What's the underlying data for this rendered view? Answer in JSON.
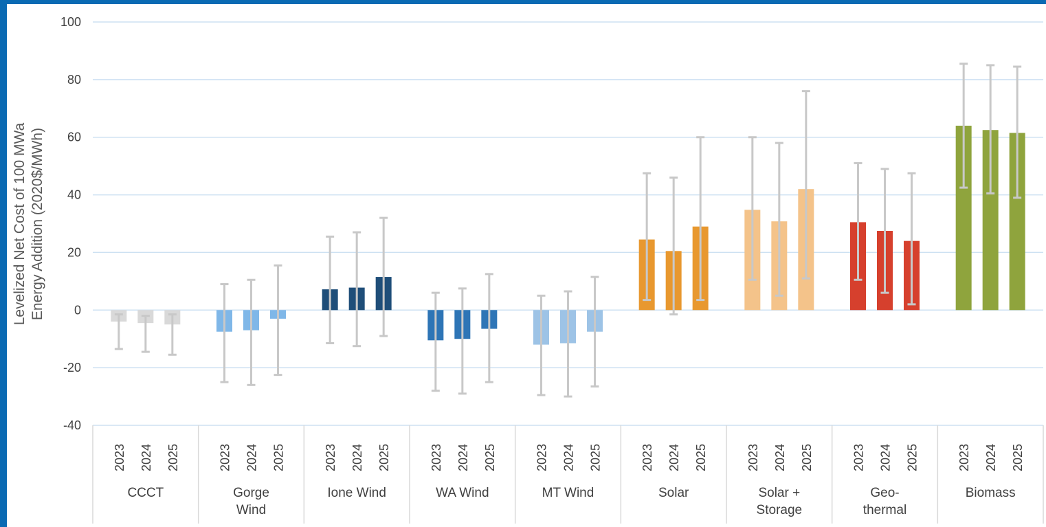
{
  "chart_data": {
    "type": "bar",
    "title": "",
    "ylabel_lines": [
      "Levelized Net Cost of 100 MWa",
      "Energy Addition (2020$/MWh)"
    ],
    "xlabel": "",
    "ylim": [
      -40,
      100
    ],
    "yticks": [
      -40,
      -20,
      0,
      20,
      40,
      60,
      80,
      100
    ],
    "grid": true,
    "years": [
      "2023",
      "2024",
      "2025"
    ],
    "groups": [
      {
        "label_lines": [
          "CCCT"
        ],
        "color": "#d9d9d9",
        "values": [
          -4,
          -4.5,
          -5
        ],
        "err_low": [
          -13.5,
          -14.5,
          -15.5
        ],
        "err_high": [
          -1.5,
          -2,
          -1.5
        ]
      },
      {
        "label_lines": [
          "Gorge",
          "Wind"
        ],
        "color": "#7fb7e8",
        "values": [
          -7.5,
          -7,
          -3
        ],
        "err_low": [
          -25,
          -26,
          -22.5
        ],
        "err_high": [
          9,
          10.5,
          15.5
        ]
      },
      {
        "label_lines": [
          "Ione Wind"
        ],
        "color": "#1f4e79",
        "values": [
          7.2,
          7.8,
          11.5
        ],
        "err_low": [
          -11.5,
          -12.5,
          -9
        ],
        "err_high": [
          25.5,
          27,
          32
        ]
      },
      {
        "label_lines": [
          "WA Wind"
        ],
        "color": "#2e75b6",
        "values": [
          -10.5,
          -10,
          -6.5
        ],
        "err_low": [
          -28,
          -29,
          -25
        ],
        "err_high": [
          6,
          7.5,
          12.5
        ]
      },
      {
        "label_lines": [
          "MT Wind"
        ],
        "color": "#9dc3e6",
        "values": [
          -12,
          -11.5,
          -7.5
        ],
        "err_low": [
          -29.5,
          -30,
          -26.5
        ],
        "err_high": [
          5,
          6.5,
          11.5
        ]
      },
      {
        "label_lines": [
          "Solar"
        ],
        "color": "#e8982f",
        "values": [
          24.5,
          20.5,
          29
        ],
        "err_low": [
          3.5,
          -1.5,
          3.5
        ],
        "err_high": [
          47.5,
          46,
          60
        ]
      },
      {
        "label_lines": [
          "Solar +",
          "Storage"
        ],
        "color": "#f4c38a",
        "values": [
          34.8,
          30.8,
          42
        ],
        "err_low": [
          10.5,
          5,
          11
        ],
        "err_high": [
          60,
          58,
          76
        ]
      },
      {
        "label_lines": [
          "Geo-",
          "thermal"
        ],
        "color": "#d6402d",
        "values": [
          30.5,
          27.5,
          24
        ],
        "err_low": [
          10.5,
          6,
          2
        ],
        "err_high": [
          51,
          49,
          47.5
        ]
      },
      {
        "label_lines": [
          "Biomass"
        ],
        "color": "#8fa43d",
        "values": [
          64,
          62.5,
          61.5
        ],
        "err_low": [
          42.5,
          40.5,
          39
        ],
        "err_high": [
          85.5,
          85,
          84.5
        ]
      }
    ],
    "error_bar_color": "#c8c8c8",
    "gridline_color": "#cde1f2"
  }
}
